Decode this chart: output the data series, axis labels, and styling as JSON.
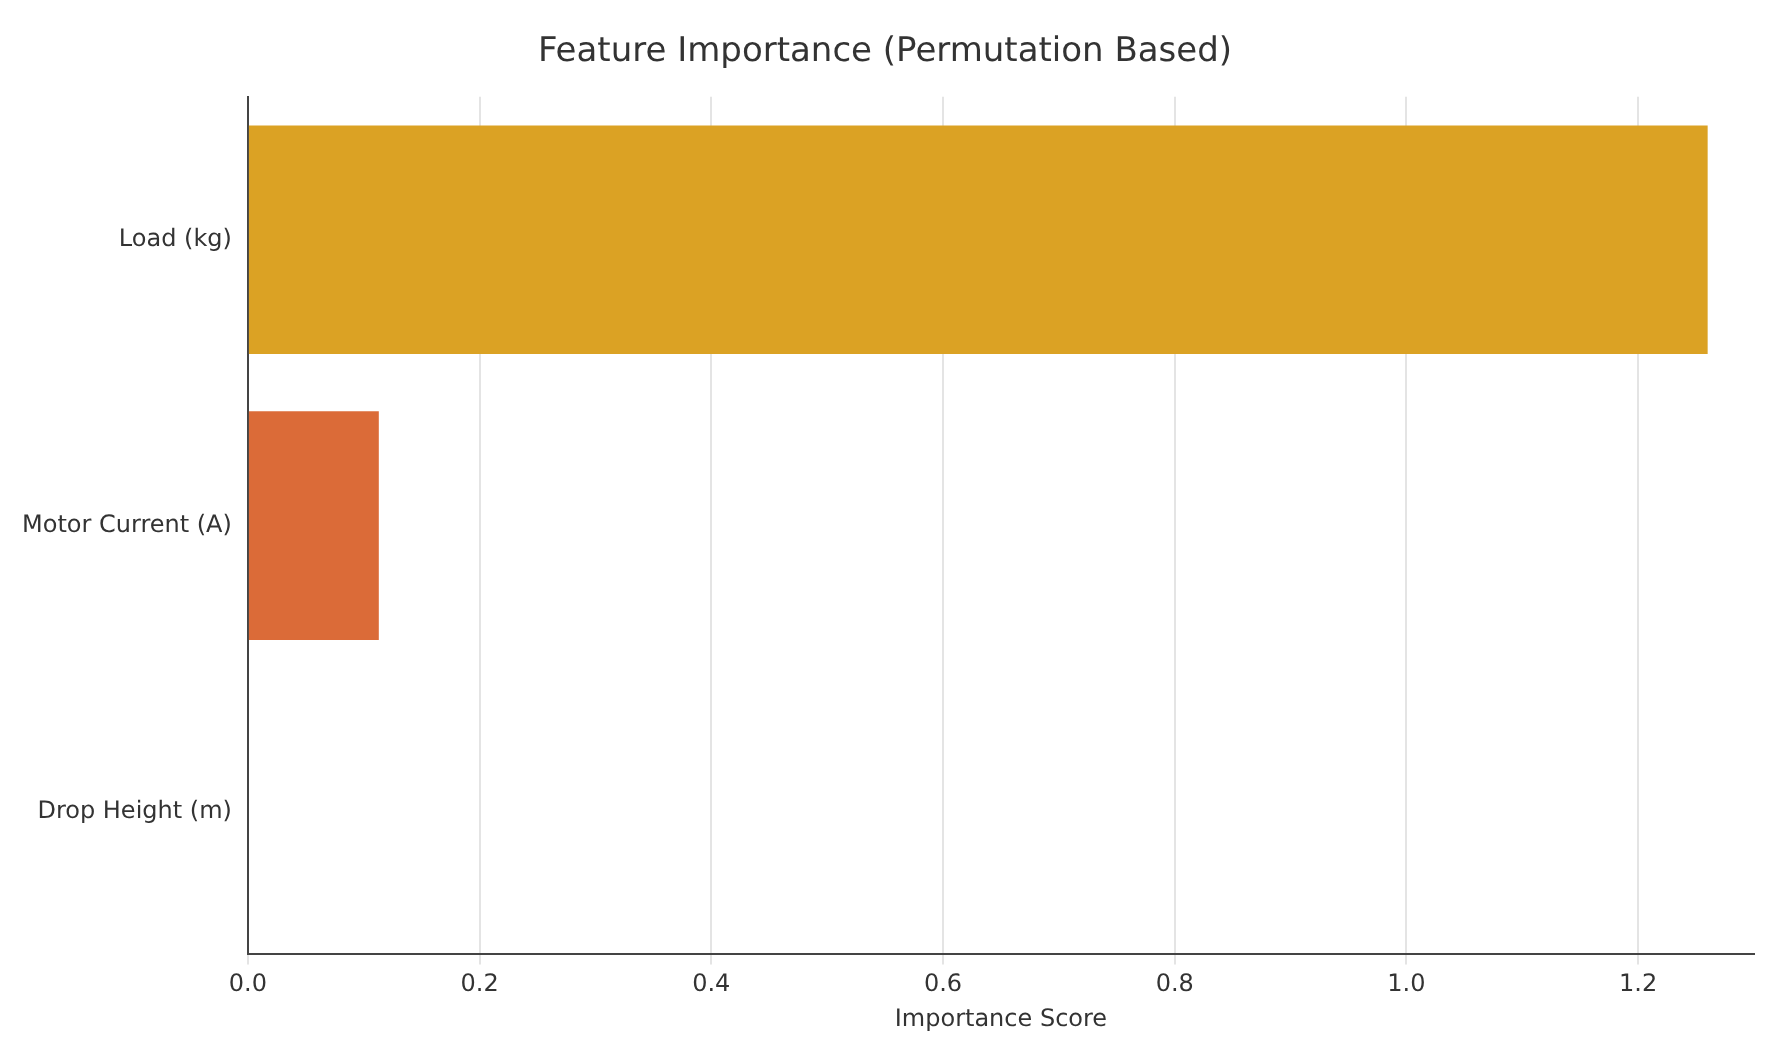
{
  "chart_data": {
    "type": "bar",
    "orientation": "horizontal",
    "title": "Feature Importance (Permutation Based)",
    "xlabel": "Importance Score",
    "categories": [
      "Load (kg)",
      "Motor Current (A)",
      "Drop Height (m)"
    ],
    "values": [
      1.26,
      0.113,
      0
    ],
    "colors": [
      "#dba224",
      "#db6b38",
      "#4c72b0"
    ],
    "xlim": [
      0,
      1.3
    ],
    "xticks": [
      {
        "value": 0,
        "label": "0.0"
      },
      0.2,
      0.4,
      0.6,
      0.8,
      {
        "value": 1,
        "label": "1.0"
      },
      1.2
    ],
    "grid": "x",
    "legend": false
  }
}
